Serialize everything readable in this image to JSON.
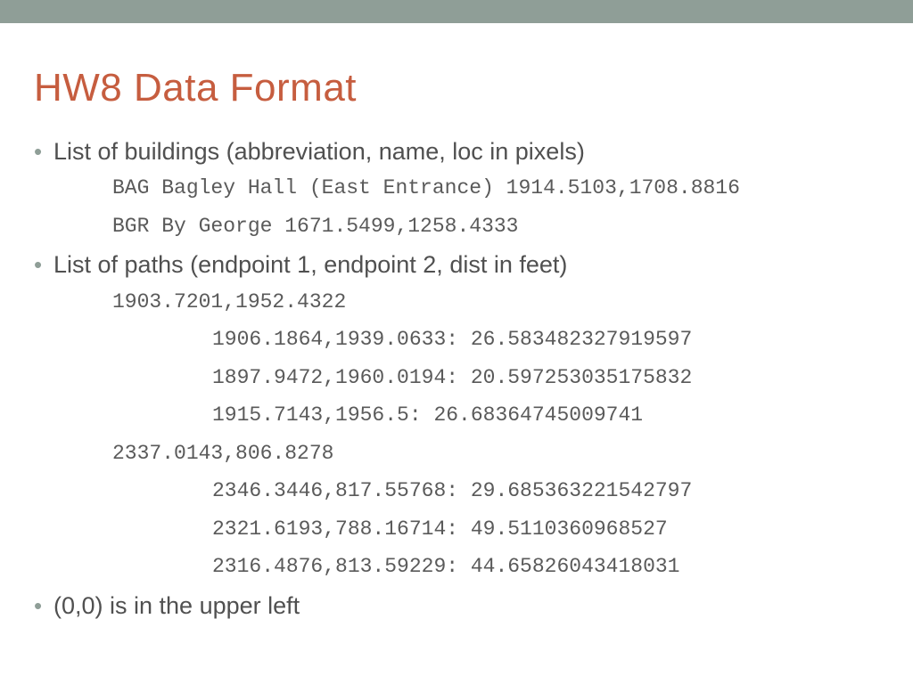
{
  "colors": {
    "header_bar": "#8f9e97",
    "title": "#c65d3f",
    "body_text": "#505050",
    "mono_text": "#5a5a5a",
    "bullet": "#8f9e97",
    "background": "#ffffff"
  },
  "typography": {
    "title_fontsize": 44,
    "bullet_fontsize": 27,
    "mono_fontsize": 23,
    "mono_family": "Courier New"
  },
  "title": "HW8 Data Format",
  "bullets": {
    "b0": "List of buildings (abbreviation, name, loc in pixels)",
    "b1": "List of paths (endpoint 1, endpoint 2, dist in feet)",
    "b2": "(0,0) is in the upper left"
  },
  "buildings": {
    "line0": "BAG Bagley Hall (East Entrance) 1914.5103,1708.8816",
    "line1": "BGR By George 1671.5499,1258.4333"
  },
  "paths": {
    "head0": "1903.7201,1952.4322",
    "e0": "1906.1864,1939.0633: 26.583482327919597",
    "e1": "1897.9472,1960.0194: 20.597253035175832",
    "e2": "1915.7143,1956.5: 26.68364745009741",
    "head1": "2337.0143,806.8278",
    "e3": "2346.3446,817.55768: 29.685363221542797",
    "e4": "2321.6193,788.16714: 49.5110360968527",
    "e5": "2316.4876,813.59229: 44.65826043418031"
  }
}
